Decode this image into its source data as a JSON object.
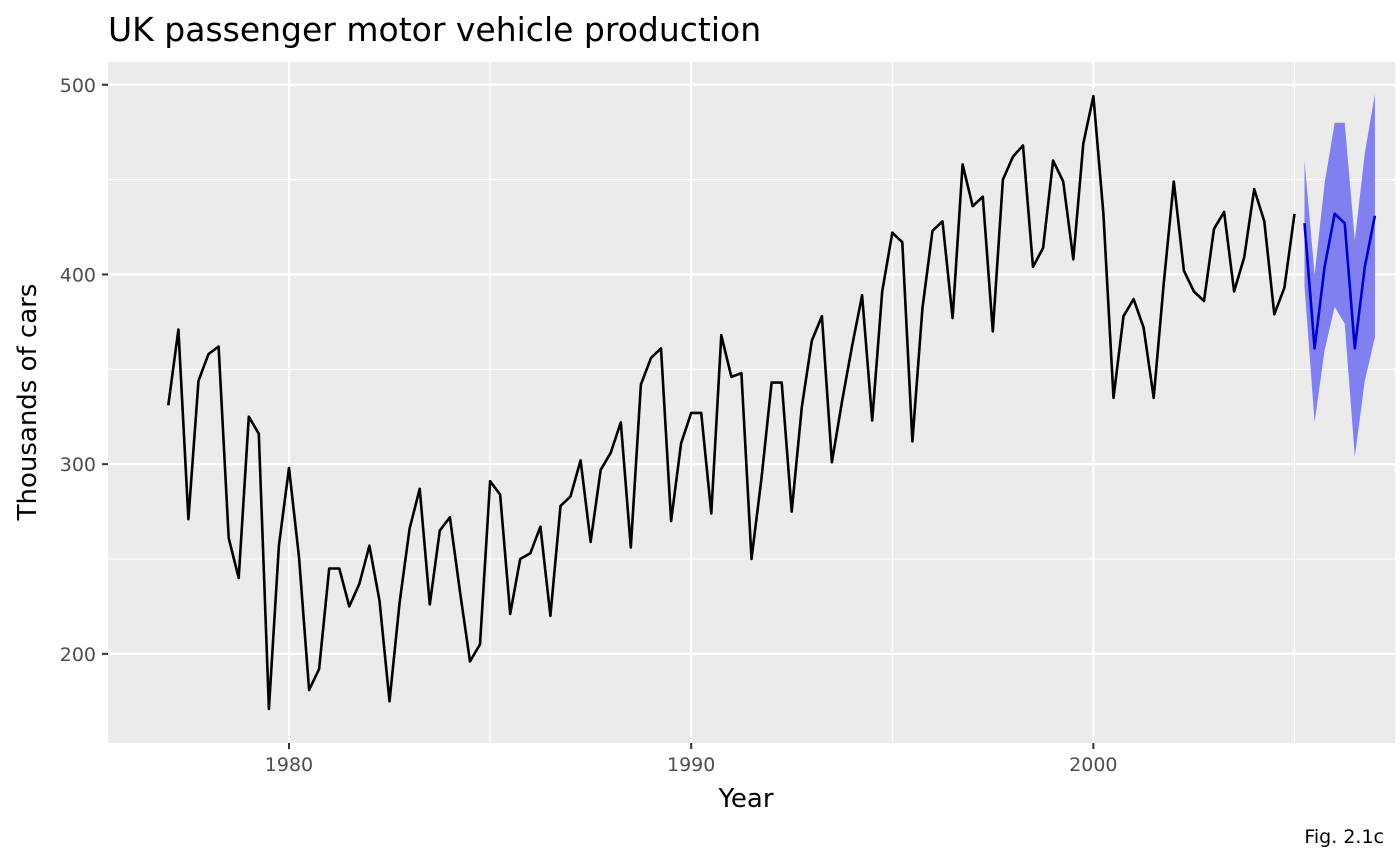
{
  "chart_data": {
    "type": "line",
    "title": "UK passenger motor vehicle production",
    "xlabel": "Year",
    "ylabel": "Thousands of cars",
    "caption": "Fig. 2.1c",
    "xlim": [
      1975.5,
      2007.5
    ],
    "ylim": [
      153,
      512
    ],
    "x_ticks": [
      1980,
      1990,
      2000
    ],
    "x_tick_labels": [
      "1980",
      "1990",
      "2000"
    ],
    "y_ticks": [
      200,
      300,
      400,
      500
    ],
    "y_tick_labels": [
      "200",
      "300",
      "400",
      "500"
    ],
    "grid": true,
    "colors": {
      "panel": "#ebebeb",
      "grid": "#ffffff",
      "series": "#000000",
      "forecast": "#0000cc",
      "interval": "#8080f0"
    },
    "series": [
      {
        "x": [
          1977.0,
          1977.25,
          1977.5,
          1977.75,
          1978.0,
          1978.25,
          1978.5,
          1978.75,
          1979.0,
          1979.25,
          1979.5,
          1979.75,
          1980.0,
          1980.25,
          1980.5,
          1980.75,
          1981.0,
          1981.25,
          1981.5,
          1981.75,
          1982.0,
          1982.25,
          1982.5,
          1982.75,
          1983.0,
          1983.25,
          1983.5,
          1983.75,
          1984.0,
          1984.25,
          1984.5,
          1984.75,
          1985.0,
          1985.25,
          1985.5,
          1985.75,
          1986.0,
          1986.25,
          1986.5,
          1986.75,
          1987.0,
          1987.25,
          1987.5,
          1987.75,
          1988.0,
          1988.25,
          1988.5,
          1988.75,
          1989.0,
          1989.25,
          1989.5,
          1989.75,
          1990.0,
          1990.25,
          1990.5,
          1990.75,
          1991.0,
          1991.25,
          1991.5,
          1991.75,
          1992.0,
          1992.25,
          1992.5,
          1992.75,
          1993.0,
          1993.25,
          1993.5,
          1993.75,
          1994.0,
          1994.25,
          1994.5,
          1994.75,
          1995.0,
          1995.25,
          1995.5,
          1995.75,
          1996.0,
          1996.25,
          1996.5,
          1996.75,
          1997.0,
          1997.25,
          1997.5,
          1997.75,
          1998.0,
          1998.25,
          1998.5,
          1998.75,
          1999.0,
          1999.25,
          1999.5,
          1999.75,
          2000.0,
          2000.25,
          2000.5,
          2000.75,
          2001.0,
          2001.25,
          2001.5,
          2001.75,
          2002.0,
          2002.25,
          2002.5,
          2002.75,
          2003.0,
          2003.25,
          2003.5,
          2003.75,
          2004.0,
          2004.25,
          2004.5,
          2004.75,
          2005.0
        ],
        "values": [
          331,
          371,
          271,
          344,
          358,
          362,
          261,
          240,
          325,
          316,
          171,
          257,
          298,
          251,
          181,
          192,
          245,
          245,
          225,
          237,
          257,
          228,
          175,
          227,
          266,
          287,
          226,
          265,
          272,
          233,
          196,
          205,
          291,
          284,
          221,
          250,
          253,
          267,
          220,
          278,
          283,
          302,
          259,
          297,
          306,
          322,
          256,
          342,
          356,
          361,
          270,
          311,
          327,
          327,
          274,
          368,
          346,
          348,
          250,
          293,
          343,
          343,
          275,
          330,
          365,
          378,
          301,
          333,
          362,
          389,
          323,
          391,
          422,
          417,
          312,
          382,
          423,
          428,
          377,
          458,
          436,
          441,
          370,
          450,
          462,
          468,
          404,
          414,
          460,
          449,
          408,
          469,
          494,
          432,
          335,
          378,
          387,
          372,
          335,
          395,
          449,
          402,
          391,
          386,
          424,
          433,
          391,
          409,
          445,
          428,
          379,
          393,
          432
        ]
      },
      {
        "x": [
          2005.25,
          2005.5,
          2005.75,
          2006.0,
          2006.25,
          2006.5,
          2006.75,
          2007.0
        ],
        "values": [
          427,
          361,
          404,
          432,
          427,
          361,
          404,
          431
        ],
        "lower": [
          394,
          322,
          360,
          383,
          374,
          304,
          344,
          367
        ],
        "upper": [
          460,
          400,
          448,
          480,
          480,
          418,
          464,
          495
        ]
      }
    ]
  }
}
